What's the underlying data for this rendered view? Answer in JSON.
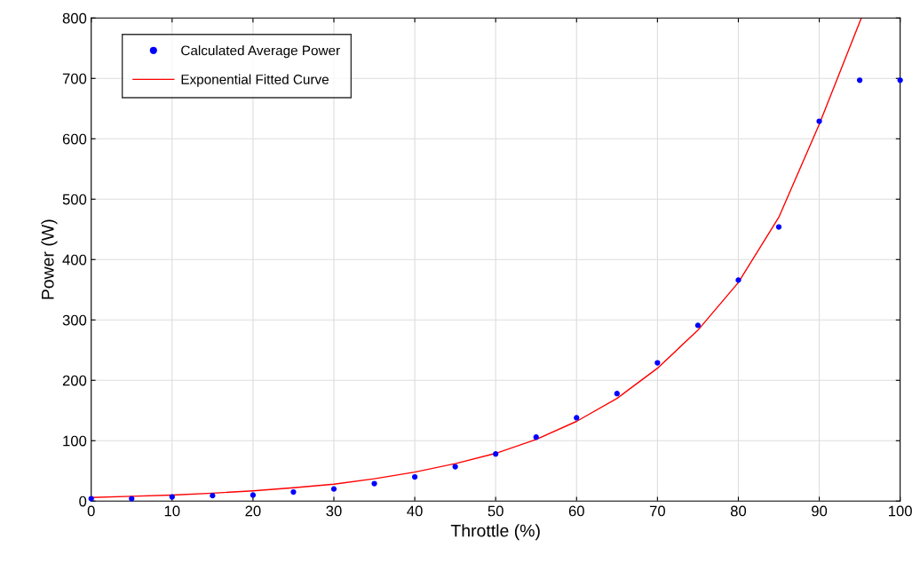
{
  "chart_data": {
    "type": "scatter",
    "xlabel": "Throttle (%)",
    "ylabel": "Power (W)",
    "xlim": [
      0,
      100
    ],
    "ylim": [
      0,
      800
    ],
    "xticks": [
      0,
      10,
      20,
      30,
      40,
      50,
      60,
      70,
      80,
      90,
      100
    ],
    "yticks": [
      0,
      100,
      200,
      300,
      400,
      500,
      600,
      700,
      800
    ],
    "grid": true,
    "legend": "top left",
    "series": [
      {
        "name": "Calculated Average Power",
        "color": "#0000ff",
        "marker": "circle",
        "x": [
          0,
          5,
          10,
          15,
          20,
          25,
          30,
          35,
          40,
          45,
          50,
          55,
          60,
          65,
          70,
          75,
          80,
          85,
          90,
          95,
          100
        ],
        "values": [
          4,
          4,
          7,
          9,
          10,
          15,
          20,
          29,
          40,
          57,
          78,
          106,
          138,
          178,
          229,
          291,
          366,
          454,
          629,
          697,
          697
        ]
      },
      {
        "name": "Exponential Fitted Curve",
        "type": "line",
        "color": "#ff0000",
        "marker": "none",
        "x": [
          0,
          5,
          10,
          15,
          20,
          25,
          30,
          35,
          40,
          45,
          50,
          55,
          60,
          65,
          70,
          75,
          80,
          85,
          90,
          95.2
        ],
        "values": [
          6,
          8,
          10,
          13,
          17,
          22,
          28,
          37,
          48,
          62,
          79,
          102,
          132,
          170,
          220,
          283,
          362,
          470,
          624,
          800
        ]
      }
    ]
  }
}
